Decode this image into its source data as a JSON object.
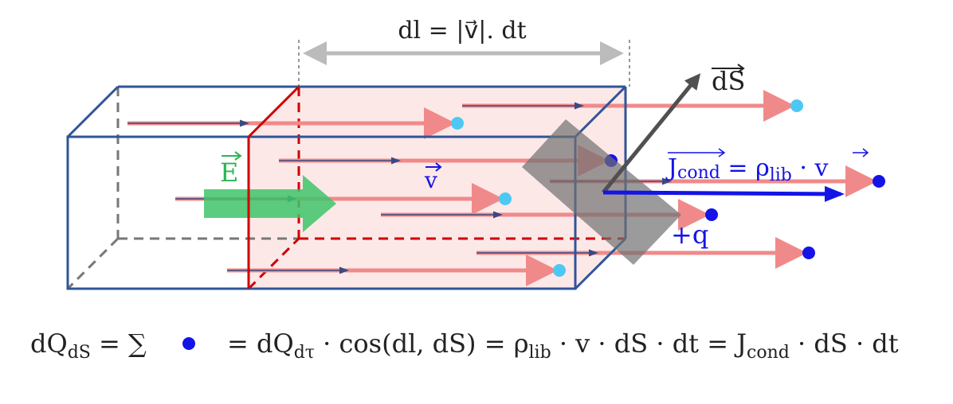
{
  "labels": {
    "dl": "dl = |v⃗|. dt",
    "ds": "dS",
    "e_field": "E",
    "velocity": "v",
    "charge": "+q",
    "j_main": "J",
    "j_sub": "cond",
    "j_eq": " = ρ",
    "j_rho_sub": "lib",
    "j_tail": " · v"
  },
  "formula": {
    "lhs": "dQ",
    "lhs_sub": "dS",
    "eq_sum": " = ∑",
    "p1": "= dQ",
    "p1_sub": "dτ",
    "p2": " · cos(",
    "dl": "dl",
    "comma": ", ",
    "ds": "dS",
    "p3": ") = ρ",
    "p3_sub": "lib",
    "p4": " · v · ",
    "ds2": "dS",
    "p5": " · dt = ",
    "j": "J",
    "j_sub": "cond",
    "p6": " · ",
    "ds3": "dS",
    "p7": " · dt"
  },
  "colors": {
    "box": "#2f5597",
    "slice": "#d00000",
    "slice_fill": "#fde8e8",
    "flow": "#f08a8a",
    "charge_dark": "#1414e6",
    "charge_light": "#4dc8f5",
    "e_field": "#3fc46a",
    "surface": "#808080",
    "ds_vector": "#505050",
    "current": "#1414e6"
  }
}
